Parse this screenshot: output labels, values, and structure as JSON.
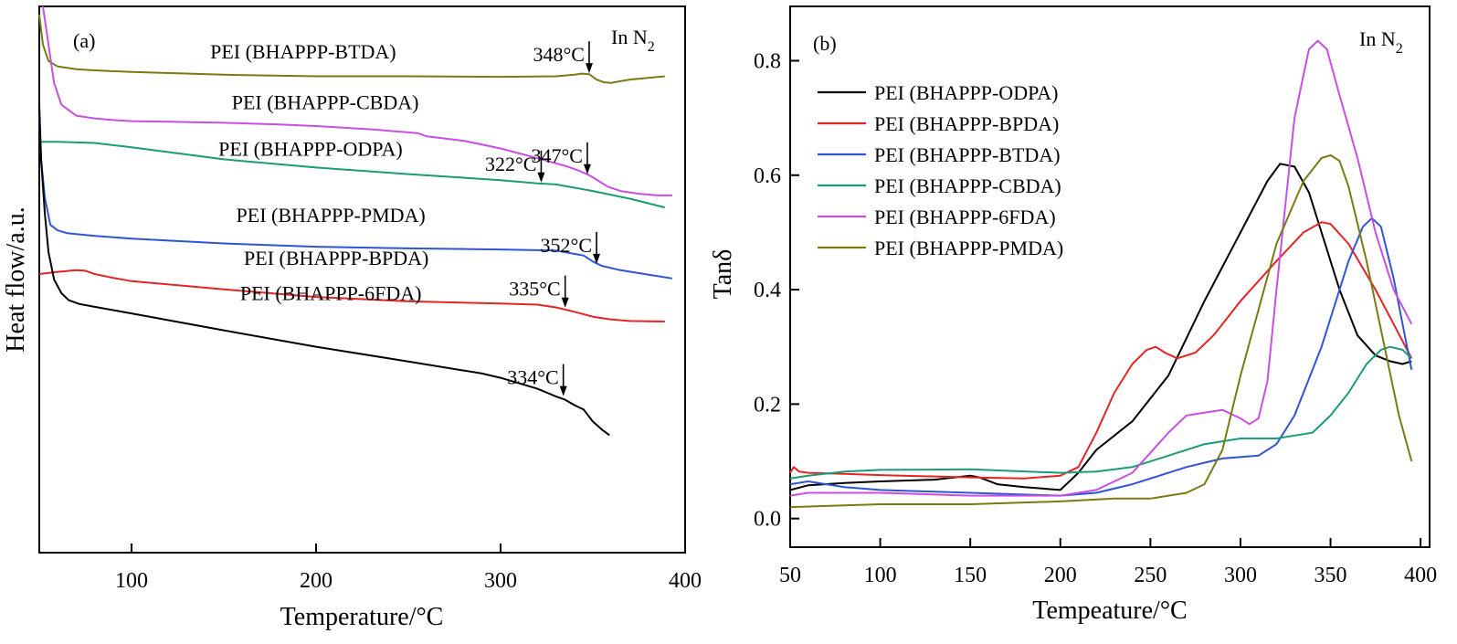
{
  "chart_data": [
    {
      "type": "line",
      "panel_label": "(a)",
      "atmosphere": {
        "prefix": "In N",
        "subscript": "2"
      },
      "xlabel": "Temperature/°C",
      "ylabel": "Heat flow/a.u.",
      "xlim": [
        50,
        400
      ],
      "xticks": [
        100,
        200,
        300,
        400
      ],
      "grid": false,
      "series": [
        {
          "name": "PEI (BHAPPP-BTDA)",
          "color": "#7a7a12",
          "x": [
            50,
            52,
            55,
            60,
            70,
            80,
            100,
            150,
            200,
            250,
            300,
            330,
            340,
            344,
            348,
            352,
            356,
            360,
            365,
            370,
            380,
            389
          ],
          "y": [
            0.985,
            0.93,
            0.9,
            0.89,
            0.885,
            0.883,
            0.88,
            0.875,
            0.872,
            0.872,
            0.871,
            0.872,
            0.875,
            0.877,
            0.876,
            0.866,
            0.861,
            0.86,
            0.863,
            0.866,
            0.869,
            0.872
          ]
        },
        {
          "name": "PEI (BHAPPP-CBDA)",
          "color": "#c94fe3",
          "x": [
            52,
            55,
            58,
            62,
            70,
            80,
            90,
            100,
            120,
            150,
            180,
            200,
            230,
            255,
            260,
            280,
            300,
            320,
            335,
            342,
            348,
            352,
            358,
            365,
            375,
            385,
            393
          ],
          "y": [
            1.0,
            0.93,
            0.86,
            0.82,
            0.8,
            0.795,
            0.792,
            0.79,
            0.789,
            0.787,
            0.784,
            0.781,
            0.775,
            0.768,
            0.762,
            0.754,
            0.74,
            0.722,
            0.708,
            0.7,
            0.691,
            0.683,
            0.67,
            0.662,
            0.657,
            0.654,
            0.654
          ]
        },
        {
          "name": "PEI (BHAPPP-ODPA)",
          "color": "#1a9c78",
          "x": [
            50,
            60,
            80,
            100,
            150,
            200,
            250,
            300,
            320,
            330,
            350,
            370,
            389
          ],
          "y": [
            0.752,
            0.752,
            0.75,
            0.742,
            0.72,
            0.705,
            0.693,
            0.682,
            0.676,
            0.674,
            0.662,
            0.648,
            0.632
          ]
        },
        {
          "name": "PEI (BHAPPP-PMDA)",
          "color": "#2f55d6",
          "x": [
            50,
            51,
            53,
            56,
            60,
            65,
            80,
            100,
            150,
            200,
            250,
            300,
            330,
            345,
            350,
            355,
            365,
            380,
            393
          ],
          "y": [
            0.8,
            0.72,
            0.65,
            0.6,
            0.59,
            0.585,
            0.58,
            0.575,
            0.566,
            0.56,
            0.557,
            0.555,
            0.553,
            0.544,
            0.533,
            0.525,
            0.517,
            0.509,
            0.502
          ]
        },
        {
          "name": "PEI (BHAPPP-BPDA)",
          "color": "#e52525",
          "x": [
            50,
            60,
            70,
            75,
            80,
            90,
            100,
            150,
            200,
            250,
            300,
            320,
            330,
            340,
            350,
            360,
            370,
            389
          ],
          "y": [
            0.51,
            0.514,
            0.517,
            0.516,
            0.51,
            0.503,
            0.497,
            0.482,
            0.468,
            0.46,
            0.456,
            0.454,
            0.449,
            0.441,
            0.432,
            0.427,
            0.424,
            0.423
          ]
        },
        {
          "name": "PEI (BHAPPP-6FDA)",
          "color": "#000000",
          "x": [
            50,
            51,
            53,
            55,
            58,
            62,
            66,
            72,
            80,
            100,
            150,
            200,
            250,
            290,
            300,
            320,
            330,
            335,
            340,
            345,
            350,
            355,
            359
          ],
          "y": [
            0.82,
            0.72,
            0.62,
            0.55,
            0.5,
            0.475,
            0.462,
            0.455,
            0.45,
            0.438,
            0.407,
            0.377,
            0.35,
            0.328,
            0.32,
            0.3,
            0.286,
            0.28,
            0.27,
            0.262,
            0.24,
            0.225,
            0.215
          ]
        }
      ],
      "series_labels": [
        {
          "series": 0,
          "x": 193,
          "y": 0.905
        },
        {
          "series": 1,
          "x": 205,
          "y": 0.812
        },
        {
          "series": 2,
          "x": 197,
          "y": 0.727
        },
        {
          "series": 3,
          "x": 208,
          "y": 0.605
        },
        {
          "series": 4,
          "x": 211,
          "y": 0.527
        },
        {
          "series": 5,
          "x": 208,
          "y": 0.462
        }
      ],
      "annotations": [
        {
          "text": "348°C",
          "x": 348,
          "y": 0.876,
          "series": 0
        },
        {
          "text": "347°C",
          "x": 347,
          "y": 0.691,
          "series": 1
        },
        {
          "text": "322°C",
          "x": 322,
          "y": 0.676,
          "series": 2
        },
        {
          "text": "352°C",
          "x": 352,
          "y": 0.527,
          "series": 3
        },
        {
          "text": "335°C",
          "x": 335,
          "y": 0.447,
          "series": 4
        },
        {
          "text": "334°C",
          "x": 334,
          "y": 0.285,
          "series": 5
        }
      ]
    },
    {
      "type": "line",
      "panel_label": "(b)",
      "atmosphere": {
        "prefix": "In N",
        "subscript": "2"
      },
      "xlabel": "Tempeature/°C",
      "ylabel": "Tanδ",
      "xlim": [
        50,
        405
      ],
      "ylim": [
        -0.05,
        0.895
      ],
      "xticks": [
        50,
        100,
        150,
        200,
        250,
        300,
        350,
        400
      ],
      "yticks": [
        "0.0",
        "0.2",
        "0.4",
        "0.6",
        "0.8"
      ],
      "legend": "top-left",
      "grid": false,
      "series": [
        {
          "name": "PEI (BHAPPP-ODPA)",
          "color": "#000000",
          "x": [
            50,
            60,
            80,
            100,
            130,
            150,
            155,
            165,
            180,
            200,
            210,
            220,
            240,
            250,
            260,
            280,
            300,
            315,
            322,
            330,
            338,
            345,
            355,
            365,
            375,
            383,
            390,
            395
          ],
          "y": [
            0.05,
            0.058,
            0.062,
            0.065,
            0.068,
            0.075,
            0.072,
            0.06,
            0.055,
            0.05,
            0.08,
            0.12,
            0.17,
            0.21,
            0.25,
            0.38,
            0.5,
            0.59,
            0.62,
            0.615,
            0.57,
            0.5,
            0.4,
            0.32,
            0.285,
            0.275,
            0.27,
            0.275
          ]
        },
        {
          "name": "PEI (BHAPPP-BPDA)",
          "color": "#e52525",
          "x": [
            50,
            52,
            55,
            60,
            80,
            100,
            150,
            180,
            200,
            210,
            220,
            230,
            240,
            248,
            253,
            258,
            265,
            275,
            285,
            300,
            320,
            335,
            345,
            350,
            360,
            375,
            385,
            395
          ],
          "y": [
            0.08,
            0.09,
            0.082,
            0.08,
            0.078,
            0.076,
            0.072,
            0.07,
            0.075,
            0.09,
            0.15,
            0.22,
            0.27,
            0.295,
            0.3,
            0.29,
            0.28,
            0.29,
            0.32,
            0.38,
            0.45,
            0.5,
            0.518,
            0.515,
            0.48,
            0.4,
            0.34,
            0.28
          ]
        },
        {
          "name": "PEI (BHAPPP-BTDA)",
          "color": "#2f55d6",
          "x": [
            50,
            60,
            80,
            100,
            150,
            200,
            220,
            240,
            260,
            270,
            290,
            310,
            320,
            330,
            345,
            360,
            368,
            373,
            378,
            385,
            390,
            395
          ],
          "y": [
            0.06,
            0.065,
            0.055,
            0.05,
            0.045,
            0.04,
            0.045,
            0.06,
            0.08,
            0.09,
            0.105,
            0.11,
            0.13,
            0.18,
            0.3,
            0.45,
            0.51,
            0.525,
            0.51,
            0.42,
            0.34,
            0.26
          ]
        },
        {
          "name": "PEI (BHAPPP-CBDA)",
          "color": "#1a9c78",
          "x": [
            50,
            60,
            80,
            100,
            150,
            200,
            220,
            240,
            260,
            280,
            300,
            320,
            340,
            350,
            360,
            370,
            378,
            383,
            390,
            395
          ],
          "y": [
            0.07,
            0.075,
            0.082,
            0.085,
            0.086,
            0.08,
            0.082,
            0.09,
            0.11,
            0.13,
            0.14,
            0.14,
            0.15,
            0.18,
            0.22,
            0.27,
            0.295,
            0.3,
            0.295,
            0.28
          ]
        },
        {
          "name": "PEI (BHAPPP-6FDA)",
          "color": "#c94fe3",
          "x": [
            50,
            60,
            80,
            100,
            150,
            200,
            220,
            240,
            260,
            270,
            280,
            290,
            300,
            305,
            310,
            315,
            320,
            330,
            338,
            343,
            348,
            355,
            365,
            375,
            385,
            395
          ],
          "y": [
            0.04,
            0.045,
            0.045,
            0.045,
            0.04,
            0.04,
            0.05,
            0.08,
            0.15,
            0.18,
            0.185,
            0.19,
            0.175,
            0.165,
            0.175,
            0.24,
            0.4,
            0.7,
            0.82,
            0.835,
            0.82,
            0.74,
            0.63,
            0.5,
            0.4,
            0.34
          ]
        },
        {
          "name": "PEI (BHAPPP-PMDA)",
          "color": "#7a7a12",
          "x": [
            50,
            80,
            100,
            150,
            200,
            230,
            250,
            270,
            280,
            290,
            300,
            320,
            335,
            345,
            350,
            355,
            360,
            370,
            380,
            388,
            395
          ],
          "y": [
            0.02,
            0.023,
            0.025,
            0.025,
            0.03,
            0.035,
            0.035,
            0.045,
            0.06,
            0.12,
            0.25,
            0.48,
            0.59,
            0.63,
            0.635,
            0.625,
            0.58,
            0.45,
            0.3,
            0.18,
            0.1
          ]
        }
      ]
    }
  ]
}
